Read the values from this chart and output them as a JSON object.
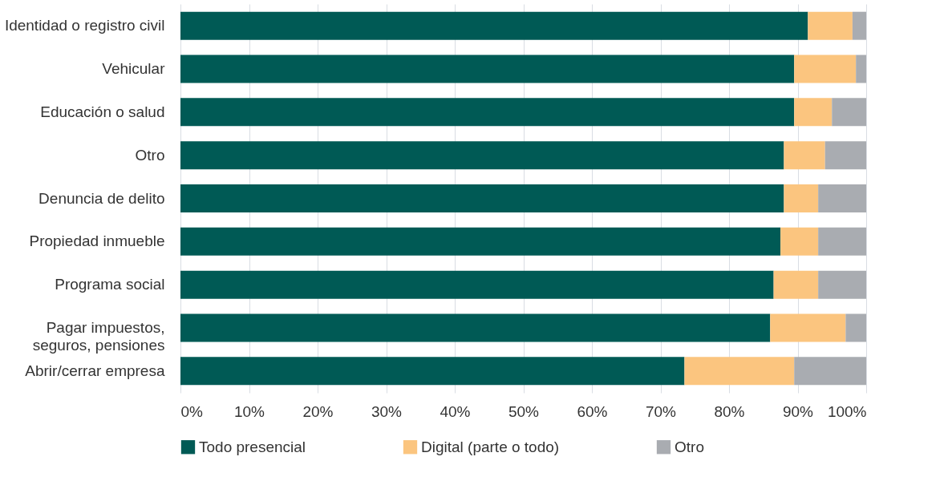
{
  "chart_data": {
    "type": "bar",
    "orientation": "horizontal",
    "stacked": true,
    "categories": [
      "Identidad o registro civil",
      "Vehicular",
      "Educación o salud",
      "Otro",
      "Denuncia de delito",
      "Propiedad inmueble",
      "Programa social",
      "Pagar impuestos, seguros, pensiones",
      "Abrir/cerrar empresa"
    ],
    "series": [
      {
        "name": "Todo presencial",
        "color": "#005a55",
        "values": [
          91.5,
          89.5,
          89.5,
          88,
          88,
          87.5,
          86.5,
          86,
          73.5
        ]
      },
      {
        "name": "Digital (parte o todo)",
        "color": "#fbc57f",
        "values": [
          6.5,
          9,
          5.5,
          6,
          5,
          5.5,
          6.5,
          11,
          16
        ]
      },
      {
        "name": "Otro",
        "color": "#a9acb1",
        "values": [
          2,
          1.5,
          5,
          6,
          7,
          7,
          7,
          3,
          10.5
        ]
      }
    ],
    "xlim": [
      0,
      100
    ],
    "xticks": [
      {
        "value": 0,
        "label": "0%"
      },
      {
        "value": 10,
        "label": "10%"
      },
      {
        "value": 20,
        "label": "20%"
      },
      {
        "value": 30,
        "label": "30%"
      },
      {
        "value": 40,
        "label": "40%"
      },
      {
        "value": 50,
        "label": "50%"
      },
      {
        "value": 60,
        "label": "60%"
      },
      {
        "value": 70,
        "label": "70%"
      },
      {
        "value": 80,
        "label": "80%"
      },
      {
        "value": 90,
        "label": "90%"
      },
      {
        "value": 100,
        "label": "100%"
      }
    ],
    "grid": "x",
    "legend": "bottom"
  }
}
